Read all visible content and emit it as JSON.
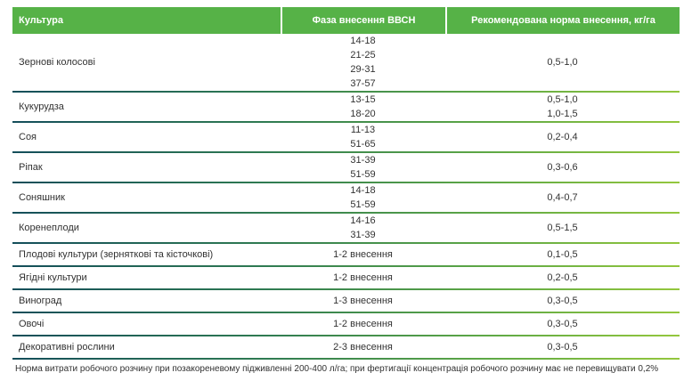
{
  "table": {
    "columns": [
      {
        "label": "Культура"
      },
      {
        "label": "Фаза внесення ВВСН"
      },
      {
        "label": "Рекомендована норма внесення, кг/га"
      }
    ],
    "rows": [
      {
        "crop": "Зернові колосові",
        "phases": [
          "14-18",
          "21-25",
          "29-31",
          "37-57"
        ],
        "rates": [
          "0,5-1,0"
        ]
      },
      {
        "crop": "Кукурудза",
        "phases": [
          "13-15",
          "18-20"
        ],
        "rates": [
          "0,5-1,0",
          "1,0-1,5"
        ]
      },
      {
        "crop": "Соя",
        "phases": [
          "11-13",
          "51-65"
        ],
        "rates": [
          "0,2-0,4"
        ]
      },
      {
        "crop": "Ріпак",
        "phases": [
          "31-39",
          "51-59"
        ],
        "rates": [
          "0,3-0,6"
        ]
      },
      {
        "crop": "Соняшник",
        "phases": [
          "14-18",
          "51-59"
        ],
        "rates": [
          "0,4-0,7"
        ]
      },
      {
        "crop": "Коренеплоди",
        "phases": [
          "14-16",
          "31-39"
        ],
        "rates": [
          "0,5-1,5"
        ]
      },
      {
        "crop": "Плодові культури (зерняткові та кісточкові)",
        "phases": [
          "1-2 внесення"
        ],
        "rates": [
          "0,1-0,5"
        ]
      },
      {
        "crop": "Ягідні культури",
        "phases": [
          "1-2 внесення"
        ],
        "rates": [
          "0,2-0,5"
        ]
      },
      {
        "crop": "Виноград",
        "phases": [
          "1-3 внесення"
        ],
        "rates": [
          "0,3-0,5"
        ]
      },
      {
        "crop": "Овочі",
        "phases": [
          "1-2 внесення"
        ],
        "rates": [
          "0,3-0,5"
        ]
      },
      {
        "crop": "Декоративні рослини",
        "phases": [
          "2-3 внесення"
        ],
        "rates": [
          "0,3-0,5"
        ]
      }
    ]
  },
  "footnote": "Норма витрати робочого розчину при позакореневому підживленні 200-400 л/га; при фертигації концентрація робочого розчину має не перевищувати 0,2%",
  "colors": {
    "header_green": "#56b247",
    "separator_dark_teal": "#144e5a",
    "separator_light_green": "#94c73d",
    "body_text": "#323232",
    "header_text": "#ffffff"
  }
}
